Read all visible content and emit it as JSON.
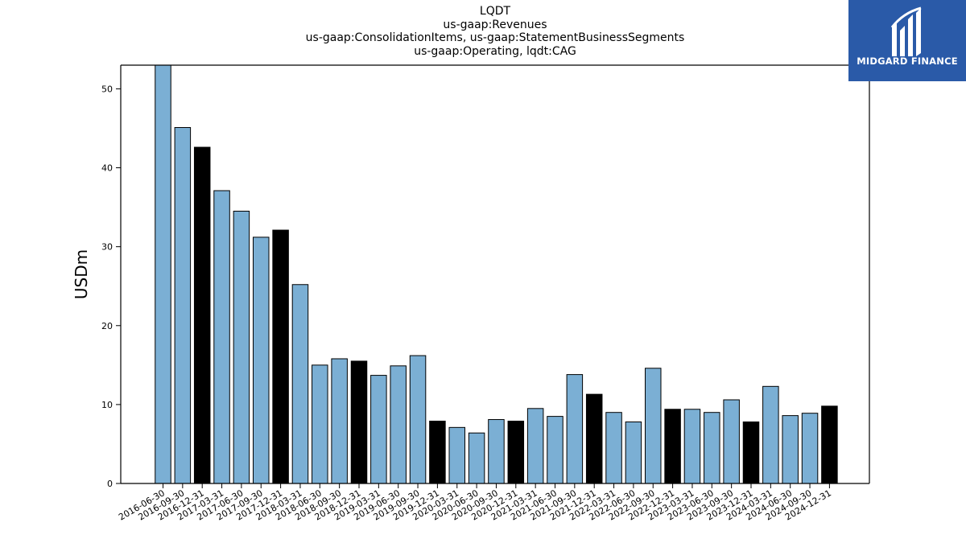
{
  "title": {
    "line1": "LQDT",
    "line2": "us-gaap:Revenues",
    "line3": "us-gaap:ConsolidationItems, us-gaap:StatementBusinessSegments",
    "line4": "us-gaap:Operating, lqdt:CAG"
  },
  "logo": {
    "text": "MIDGARD FINANCE",
    "icon": "midgard-logo-icon",
    "color": "#2a5aa8"
  },
  "chart_data": {
    "type": "bar",
    "ylabel": "USDm",
    "xlabel": "",
    "ylim": [
      0,
      53
    ],
    "yticks": [
      0,
      10,
      20,
      30,
      40,
      50
    ],
    "grid": false,
    "colors": {
      "quarter": "#7bafd4",
      "year_end": "#000000"
    },
    "categories": [
      "2016-06-30",
      "2016-09-30",
      "2016-12-31",
      "2017-03-31",
      "2017-06-30",
      "2017-09-30",
      "2017-12-31",
      "2018-03-31",
      "2018-06-30",
      "2018-09-30",
      "2018-12-31",
      "2019-03-31",
      "2019-06-30",
      "2019-09-30",
      "2019-12-31",
      "2020-03-31",
      "2020-06-30",
      "2020-09-30",
      "2020-12-31",
      "2021-03-31",
      "2021-06-30",
      "2021-09-30",
      "2021-12-31",
      "2022-03-31",
      "2022-06-30",
      "2022-09-30",
      "2022-12-31",
      "2023-03-31",
      "2023-06-30",
      "2023-09-30",
      "2023-12-31",
      "2024-03-31",
      "2024-06-30",
      "2024-09-30",
      "2024-12-31"
    ],
    "values": [
      53.0,
      45.1,
      42.6,
      37.1,
      34.5,
      31.2,
      32.1,
      25.2,
      15.0,
      15.8,
      15.5,
      13.7,
      14.9,
      16.2,
      7.9,
      7.1,
      6.4,
      8.1,
      7.9,
      9.5,
      8.5,
      13.8,
      11.3,
      9.0,
      7.8,
      14.6,
      9.4,
      9.4,
      9.0,
      10.6,
      7.8,
      12.3,
      8.6,
      8.9,
      9.8
    ],
    "highlight": [
      false,
      false,
      true,
      false,
      false,
      false,
      true,
      false,
      false,
      false,
      true,
      false,
      false,
      false,
      true,
      false,
      false,
      false,
      true,
      false,
      false,
      false,
      true,
      false,
      false,
      false,
      true,
      false,
      false,
      false,
      true,
      false,
      false,
      false,
      true
    ]
  }
}
